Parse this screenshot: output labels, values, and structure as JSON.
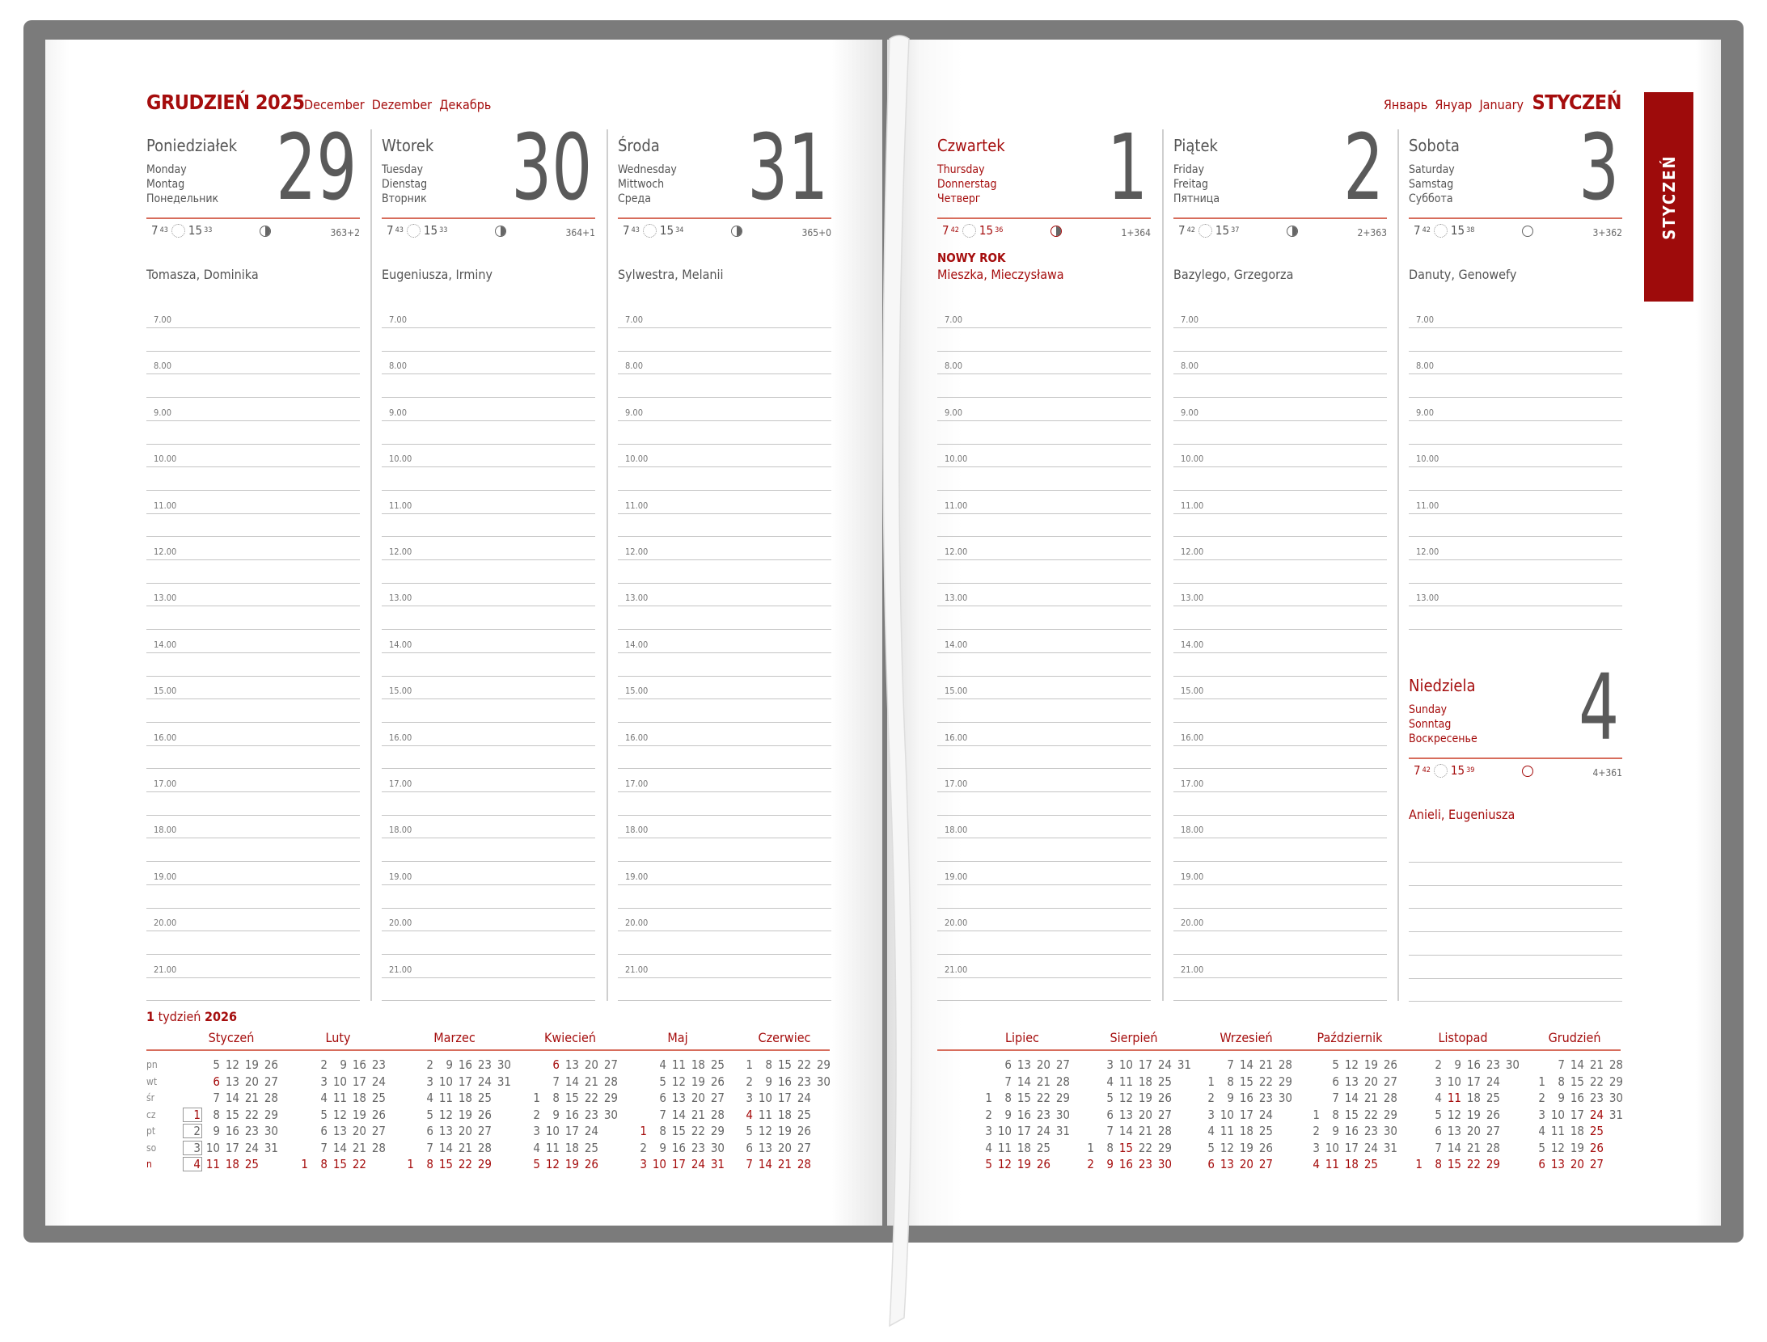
{
  "left_header": {
    "title": "GRUDZIEŃ 2025",
    "translations": "December  Dezember  Декабрь"
  },
  "right_header": {
    "title": "STYCZEŃ",
    "translations": "Январь  Януар  January"
  },
  "tab_label": "STYCZEŃ",
  "colors": {
    "accent": "#a50d0d",
    "rule": "#d76d5c",
    "cover": "#7b7b7b"
  },
  "hours": [
    "7.00",
    "8.00",
    "9.00",
    "10.00",
    "11.00",
    "12.00",
    "13.00",
    "14.00",
    "15.00",
    "16.00",
    "17.00",
    "18.00",
    "19.00",
    "20.00",
    "21.00"
  ],
  "saturday_hours": [
    "7.00",
    "8.00",
    "9.00",
    "10.00",
    "11.00",
    "12.00",
    "13.00"
  ],
  "days": [
    {
      "pl": "Poniedziałek",
      "en": "Monday",
      "de": "Montag",
      "ru": "Понедельник",
      "num": "29",
      "rise_h": "7",
      "rise_m": "43",
      "set_h": "15",
      "set_m": "33",
      "moon": "moon-half-icon",
      "counter": "363+2",
      "holiday": "",
      "names": "Tomasza, Dominika",
      "red": false
    },
    {
      "pl": "Wtorek",
      "en": "Tuesday",
      "de": "Dienstag",
      "ru": "Вторник",
      "num": "30",
      "rise_h": "7",
      "rise_m": "43",
      "set_h": "15",
      "set_m": "33",
      "moon": "moon-half-icon",
      "counter": "364+1",
      "holiday": "",
      "names": "Eugeniusza, Irminy",
      "red": false
    },
    {
      "pl": "Środa",
      "en": "Wednesday",
      "de": "Mittwoch",
      "ru": "Среда",
      "num": "31",
      "rise_h": "7",
      "rise_m": "43",
      "set_h": "15",
      "set_m": "34",
      "moon": "moon-half-icon",
      "counter": "365+0",
      "holiday": "",
      "names": "Sylwestra, Melanii",
      "red": false
    },
    {
      "pl": "Czwartek",
      "en": "Thursday",
      "de": "Donnerstag",
      "ru": "Четверг",
      "num": "1",
      "rise_h": "7",
      "rise_m": "42",
      "set_h": "15",
      "set_m": "36",
      "moon": "moon-half-icon",
      "counter": "1+364",
      "holiday": "NOWY ROK",
      "names": "Mieszka, Mieczysława",
      "red": true
    },
    {
      "pl": "Piątek",
      "en": "Friday",
      "de": "Freitag",
      "ru": "Пятница",
      "num": "2",
      "rise_h": "7",
      "rise_m": "42",
      "set_h": "15",
      "set_m": "37",
      "moon": "moon-half-icon",
      "counter": "2+363",
      "holiday": "",
      "names": "Bazylego, Grzegorza",
      "red": false
    },
    {
      "pl": "Sobota",
      "en": "Saturday",
      "de": "Samstag",
      "ru": "Суббота",
      "num": "3",
      "rise_h": "7",
      "rise_m": "42",
      "set_h": "15",
      "set_m": "38",
      "moon": "moon-full-icon",
      "counter": "3+362",
      "holiday": "",
      "names": "Danuty, Genowefy",
      "red": false
    },
    {
      "pl": "Niedziela",
      "en": "Sunday",
      "de": "Sonntag",
      "ru": "Воскресенье",
      "num": "4",
      "rise_h": "7",
      "rise_m": "42",
      "set_h": "15",
      "set_m": "39",
      "moon": "moon-full-icon",
      "counter": "4+361",
      "holiday": "",
      "names": "Anieli, Eugeniusza",
      "red": true
    }
  ],
  "mini": {
    "week_label": {
      "num": "1",
      "text": " tydzień ",
      "year": "2026"
    },
    "weekdays": [
      "pn",
      "wt",
      "śr",
      "cz",
      "pt",
      "so",
      "n"
    ],
    "months": [
      {
        "name": "Styczeń",
        "red": [
          1,
          6
        ],
        "boxed": true,
        "rows": [
          [
            null,
            5,
            12,
            19,
            26
          ],
          [
            null,
            6,
            13,
            20,
            27
          ],
          [
            null,
            7,
            14,
            21,
            28
          ],
          [
            1,
            8,
            15,
            22,
            29
          ],
          [
            2,
            9,
            16,
            23,
            30
          ],
          [
            3,
            10,
            17,
            24,
            31
          ],
          [
            4,
            11,
            18,
            25,
            null
          ]
        ]
      },
      {
        "name": "Luty",
        "red": [],
        "rows": [
          [
            null,
            2,
            9,
            16,
            23
          ],
          [
            null,
            3,
            10,
            17,
            24
          ],
          [
            null,
            4,
            11,
            18,
            25
          ],
          [
            null,
            5,
            12,
            19,
            26
          ],
          [
            null,
            6,
            13,
            20,
            27
          ],
          [
            null,
            7,
            14,
            21,
            28
          ],
          [
            1,
            8,
            15,
            22,
            null
          ]
        ]
      },
      {
        "name": "Marzec",
        "red": [],
        "rows": [
          [
            null,
            2,
            9,
            16,
            23,
            30
          ],
          [
            null,
            3,
            10,
            17,
            24,
            31
          ],
          [
            null,
            4,
            11,
            18,
            25,
            null
          ],
          [
            null,
            5,
            12,
            19,
            26,
            null
          ],
          [
            null,
            6,
            13,
            20,
            27,
            null
          ],
          [
            null,
            7,
            14,
            21,
            28,
            null
          ],
          [
            1,
            8,
            15,
            22,
            29,
            null
          ]
        ]
      },
      {
        "name": "Kwiecień",
        "red": [
          6
        ],
        "rows": [
          [
            null,
            6,
            13,
            20,
            27
          ],
          [
            null,
            7,
            14,
            21,
            28
          ],
          [
            1,
            8,
            15,
            22,
            29
          ],
          [
            2,
            9,
            16,
            23,
            30
          ],
          [
            3,
            10,
            17,
            24,
            null
          ],
          [
            4,
            11,
            18,
            25,
            null
          ],
          [
            5,
            12,
            19,
            26,
            null
          ]
        ]
      },
      {
        "name": "Maj",
        "red": [
          1
        ],
        "rows": [
          [
            null,
            4,
            11,
            18,
            25
          ],
          [
            null,
            5,
            12,
            19,
            26
          ],
          [
            null,
            6,
            13,
            20,
            27
          ],
          [
            null,
            7,
            14,
            21,
            28
          ],
          [
            1,
            8,
            15,
            22,
            29
          ],
          [
            2,
            9,
            16,
            23,
            30
          ],
          [
            3,
            10,
            17,
            24,
            31
          ]
        ]
      },
      {
        "name": "Czerwiec",
        "red": [
          4
        ],
        "rows": [
          [
            1,
            8,
            15,
            22,
            29
          ],
          [
            2,
            9,
            16,
            23,
            30
          ],
          [
            3,
            10,
            17,
            24,
            null
          ],
          [
            4,
            11,
            18,
            25,
            null
          ],
          [
            5,
            12,
            19,
            26,
            null
          ],
          [
            6,
            13,
            20,
            27,
            null
          ],
          [
            7,
            14,
            21,
            28,
            null
          ]
        ]
      },
      {
        "name": "Lipiec",
        "red": [],
        "rows": [
          [
            null,
            6,
            13,
            20,
            27
          ],
          [
            null,
            7,
            14,
            21,
            28
          ],
          [
            1,
            8,
            15,
            22,
            29
          ],
          [
            2,
            9,
            16,
            23,
            30
          ],
          [
            3,
            10,
            17,
            24,
            31
          ],
          [
            4,
            11,
            18,
            25,
            null
          ],
          [
            5,
            12,
            19,
            26,
            null
          ]
        ]
      },
      {
        "name": "Sierpień",
        "red": [
          15
        ],
        "rows": [
          [
            null,
            3,
            10,
            17,
            24,
            31
          ],
          [
            null,
            4,
            11,
            18,
            25,
            null
          ],
          [
            null,
            5,
            12,
            19,
            26,
            null
          ],
          [
            null,
            6,
            13,
            20,
            27,
            null
          ],
          [
            null,
            7,
            14,
            21,
            28,
            null
          ],
          [
            1,
            8,
            15,
            22,
            29,
            null
          ],
          [
            2,
            9,
            16,
            23,
            30,
            null
          ]
        ]
      },
      {
        "name": "Wrzesień",
        "red": [],
        "rows": [
          [
            null,
            7,
            14,
            21,
            28
          ],
          [
            1,
            8,
            15,
            22,
            29
          ],
          [
            2,
            9,
            16,
            23,
            30
          ],
          [
            3,
            10,
            17,
            24,
            null
          ],
          [
            4,
            11,
            18,
            25,
            null
          ],
          [
            5,
            12,
            19,
            26,
            null
          ],
          [
            6,
            13,
            20,
            27,
            null
          ]
        ]
      },
      {
        "name": "Październik",
        "red": [],
        "rows": [
          [
            null,
            5,
            12,
            19,
            26
          ],
          [
            null,
            6,
            13,
            20,
            27
          ],
          [
            null,
            7,
            14,
            21,
            28
          ],
          [
            1,
            8,
            15,
            22,
            29
          ],
          [
            2,
            9,
            16,
            23,
            30
          ],
          [
            3,
            10,
            17,
            24,
            31
          ],
          [
            4,
            11,
            18,
            25,
            null
          ]
        ]
      },
      {
        "name": "Listopad",
        "red": [
          11
        ],
        "rows": [
          [
            null,
            2,
            9,
            16,
            23,
            30
          ],
          [
            null,
            3,
            10,
            17,
            24,
            null
          ],
          [
            null,
            4,
            11,
            18,
            25,
            null
          ],
          [
            null,
            5,
            12,
            19,
            26,
            null
          ],
          [
            null,
            6,
            13,
            20,
            27,
            null
          ],
          [
            null,
            7,
            14,
            21,
            28,
            null
          ],
          [
            1,
            8,
            15,
            22,
            29,
            null
          ]
        ]
      },
      {
        "name": "Grudzień",
        "red": [
          24,
          25,
          26
        ],
        "rows": [
          [
            null,
            7,
            14,
            21,
            28
          ],
          [
            1,
            8,
            15,
            22,
            29
          ],
          [
            2,
            9,
            16,
            23,
            30
          ],
          [
            3,
            10,
            17,
            24,
            31
          ],
          [
            4,
            11,
            18,
            25,
            null
          ],
          [
            5,
            12,
            19,
            26,
            null
          ],
          [
            6,
            13,
            20,
            27,
            null
          ]
        ]
      }
    ]
  }
}
